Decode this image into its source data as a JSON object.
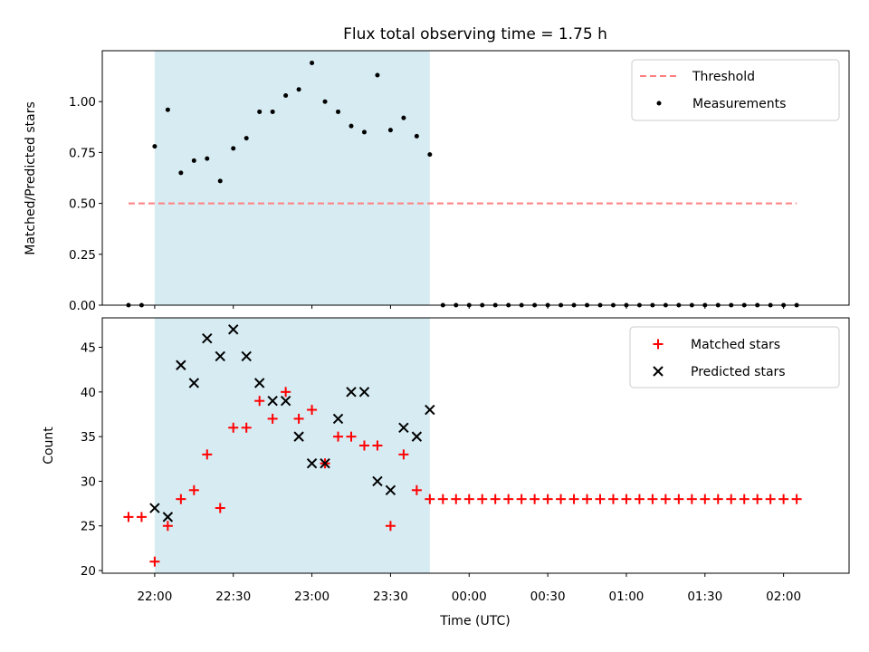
{
  "chart_data": {
    "title": "Flux total observing time = 1.75 h",
    "xlabel": "Time (UTC)",
    "x_ticks": [
      "22:00",
      "22:30",
      "23:00",
      "23:30",
      "00:00",
      "00:30",
      "01:00",
      "01:30",
      "02:00"
    ],
    "x_tick_minutes": [
      0,
      30,
      60,
      90,
      120,
      150,
      180,
      210,
      240
    ],
    "xlim_minutes": [
      -20,
      265
    ],
    "x_origin": "22:00",
    "x_minutes": [
      -10,
      -5,
      0,
      5,
      10,
      15,
      20,
      25,
      30,
      35,
      40,
      45,
      50,
      55,
      60,
      65,
      70,
      75,
      80,
      85,
      90,
      95,
      100,
      105,
      110,
      115,
      120,
      125,
      130,
      135,
      140,
      145,
      150,
      155,
      160,
      165,
      170,
      175,
      180,
      185,
      190,
      195,
      200,
      205,
      210,
      215,
      220,
      225,
      230,
      235,
      240,
      245
    ],
    "observing_window": {
      "start_minutes": 0,
      "end_minutes": 105,
      "color": "#add8e6"
    },
    "panels": [
      {
        "type": "scatter",
        "ylabel": "Matched/Predicted stars",
        "ylim": [
          0,
          1.25
        ],
        "y_ticks": [
          "0.00",
          "0.25",
          "0.50",
          "0.75",
          "1.00"
        ],
        "legend_position": "upper right",
        "threshold": {
          "name": "Threshold",
          "value": 0.5,
          "color": "#ff7f7f",
          "x_start_minutes": -10,
          "x_end_minutes": 245
        },
        "series": [
          {
            "name": "Measurements",
            "marker": "dot",
            "color": "#000000",
            "values": [
              0,
              0,
              0.78,
              0.96,
              0.65,
              0.71,
              0.72,
              0.61,
              0.77,
              0.82,
              0.95,
              0.95,
              1.03,
              1.06,
              1.19,
              1.0,
              0.95,
              0.88,
              0.85,
              1.13,
              0.86,
              0.92,
              0.83,
              0.74,
              0,
              0,
              0,
              0,
              0,
              0,
              0,
              0,
              0,
              0,
              0,
              0,
              0,
              0,
              0,
              0,
              0,
              0,
              0,
              0,
              0,
              0,
              0,
              0,
              0,
              0,
              0,
              0
            ]
          }
        ]
      },
      {
        "type": "scatter",
        "ylabel": "Count",
        "ylim": [
          19.7,
          48.3
        ],
        "y_ticks": [
          "20",
          "25",
          "30",
          "35",
          "40",
          "45"
        ],
        "legend_position": "upper right",
        "series": [
          {
            "name": "Matched stars",
            "marker": "plus",
            "color": "#ff0000",
            "values": [
              26,
              26,
              21,
              25,
              28,
              29,
              33,
              27,
              36,
              36,
              39,
              37,
              40,
              37,
              38,
              32,
              35,
              35,
              34,
              34,
              25,
              33,
              29,
              28,
              28,
              28,
              28,
              28,
              28,
              28,
              28,
              28,
              28,
              28,
              28,
              28,
              28,
              28,
              28,
              28,
              28,
              28,
              28,
              28,
              28,
              28,
              28,
              28,
              28,
              28,
              28,
              28
            ]
          },
          {
            "name": "Predicted stars",
            "marker": "x",
            "color": "#000000",
            "values": [
              null,
              null,
              27,
              26,
              43,
              41,
              46,
              44,
              47,
              44,
              41,
              39,
              39,
              35,
              32,
              32,
              37,
              40,
              40,
              30,
              29,
              36,
              35,
              38,
              null,
              null,
              null,
              null,
              null,
              null,
              null,
              null,
              null,
              null,
              null,
              null,
              null,
              null,
              null,
              null,
              null,
              null,
              null,
              null,
              null,
              null,
              null,
              null,
              null,
              null,
              null,
              null
            ]
          }
        ]
      }
    ]
  }
}
